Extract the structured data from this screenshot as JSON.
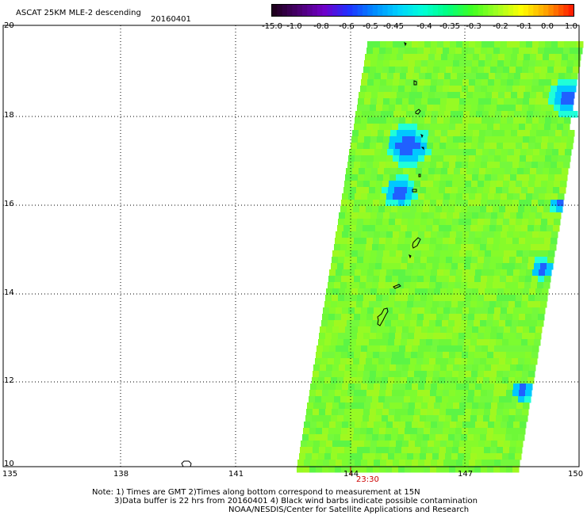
{
  "header": {
    "title": "ASCAT 25KM MLE-2 descending",
    "date": "20160401"
  },
  "colorbar": {
    "labels": [
      "-15.0",
      "-1.0",
      "-0.8",
      "-0.6",
      "-0.5",
      "-0.45",
      "-0.4",
      "-0.35",
      "-0.3",
      "-0.2",
      "-0.1",
      "0.0",
      "1.0"
    ],
    "colors": [
      "#200020",
      "#4a0070",
      "#7000c8",
      "#2030ff",
      "#0088ff",
      "#00d0ff",
      "#00ffd8",
      "#00ff80",
      "#40ff20",
      "#a0ff20",
      "#ffff00",
      "#ffa000",
      "#ff2000"
    ]
  },
  "axes": {
    "lat_labels": [
      "20",
      "18",
      "16",
      "14",
      "12",
      "10"
    ],
    "lon_labels": [
      "135",
      "138",
      "141",
      "144",
      "147",
      "150"
    ],
    "time_label": "23:30"
  },
  "footer": {
    "line1": "Note: 1) Times are GMT 2)Times along bottom correspond to measurement at 15N",
    "line2": "3)Data buffer is 22 hrs from 20160401 4) Black wind barbs indicate possible contamination",
    "line3": "NOAA/NESDIS/Center for Satellite Applications and Research"
  },
  "map": {
    "land_color": "#000000",
    "swath_base_color": "#7cfc30",
    "grid_color": "#000000",
    "time_color": "#cc0000"
  }
}
